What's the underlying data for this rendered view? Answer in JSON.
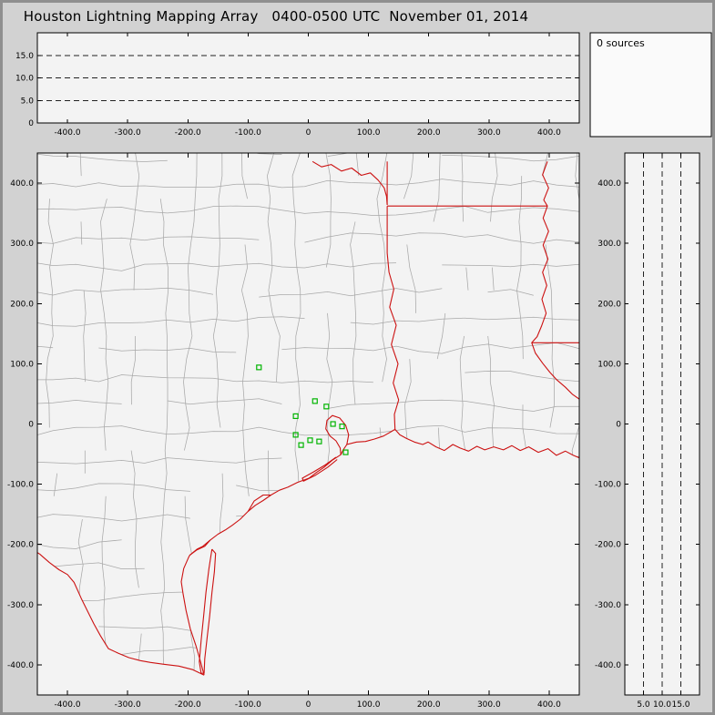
{
  "window": {
    "title": "Houston Lightning Mapping Array   0400-0500 UTC  November 01, 2014"
  },
  "sources_panel": {
    "label": "0 sources"
  },
  "colors": {
    "figure_background": "#d2d2d2",
    "panel_background": "#f3f3f3",
    "sources_panel_background": "#fafafa",
    "frame": "#000000",
    "county_lines": "#a8a8a8",
    "state_borders": "#cc1111",
    "station_marker": "#00b400",
    "dashed_gridlines": "#222222"
  },
  "chart_data": {
    "type": "scatter",
    "title": "Houston Lightning Mapping Array",
    "time_window": "0400-0500 UTC",
    "date": "November 01, 2014",
    "source_count": 0,
    "panels": {
      "top_altitude": {
        "xlim": [
          -450,
          450
        ],
        "ylim": [
          0,
          20
        ],
        "x_ticks": [
          -400,
          -300,
          -200,
          -100,
          0,
          100,
          200,
          300,
          400
        ],
        "x_tick_labels": [
          "-400.0",
          "-300.0",
          "-200.0",
          "-100.0",
          "0",
          "100.0",
          "200.0",
          "300.0",
          "400.0"
        ],
        "y_ticks": [
          0,
          5,
          10,
          15
        ],
        "y_tick_labels": [
          "0",
          "5.0",
          "10.0",
          "15.0"
        ],
        "dashed_gridlines_y": [
          5,
          10,
          15
        ],
        "points": []
      },
      "plan_view": {
        "xlim": [
          -450,
          450
        ],
        "ylim": [
          -450,
          450
        ],
        "x_ticks": [
          -400,
          -300,
          -200,
          -100,
          0,
          100,
          200,
          300,
          400
        ],
        "x_tick_labels": [
          "-400.0",
          "-300.0",
          "-200.0",
          "-100.0",
          "0",
          "100.0",
          "200.0",
          "300.0",
          "400.0"
        ],
        "y_ticks": [
          400,
          300,
          200,
          100,
          0,
          -100,
          -200,
          -300,
          -400
        ],
        "y_tick_labels": [
          "400.0",
          "300.0",
          "200.0",
          "100.0",
          "0",
          "-100.0",
          "-200.0",
          "-300.0",
          "-400.0"
        ],
        "stations_km": [
          [
            -82,
            94
          ],
          [
            -21,
            13
          ],
          [
            11,
            38
          ],
          [
            30,
            29
          ],
          [
            -21,
            -18
          ],
          [
            3,
            -27
          ],
          [
            -12,
            -35
          ],
          [
            18,
            -29
          ],
          [
            41,
            0
          ],
          [
            56,
            -4
          ],
          [
            62,
            -47
          ]
        ],
        "points": []
      },
      "right_altitude": {
        "xlim": [
          0,
          20
        ],
        "ylim": [
          -450,
          450
        ],
        "x_ticks": [
          5,
          10,
          15
        ],
        "x_tick_labels": [
          "5.0",
          "10.0",
          "15.0"
        ],
        "y_ticks": [
          400,
          300,
          200,
          100,
          0,
          -100,
          -200,
          -300,
          -400
        ],
        "y_tick_labels": [
          "400.0",
          "300.0",
          "200.0",
          "100.0",
          "0",
          "-100.0",
          "-200.0",
          "-300.0",
          "-400.0"
        ],
        "dashed_gridlines_x": [
          5,
          10,
          15
        ],
        "points": []
      }
    },
    "map_layers": {
      "county_grid": {
        "spacing_km": 46,
        "seed": 20141101
      },
      "red_paths": {
        "coastline": [
          [
            -173,
            -417
          ],
          [
            -179,
            -395
          ],
          [
            -186,
            -370
          ],
          [
            -196,
            -340
          ],
          [
            -203,
            -310
          ],
          [
            -208,
            -282
          ],
          [
            -211,
            -262
          ],
          [
            -207,
            -240
          ],
          [
            -199,
            -222
          ],
          [
            -197,
            -218
          ],
          [
            -185,
            -208
          ],
          [
            -175,
            -203
          ],
          [
            -163,
            -193
          ],
          [
            -150,
            -183
          ],
          [
            -138,
            -176
          ],
          [
            -126,
            -168
          ],
          [
            -113,
            -158
          ],
          [
            -100,
            -145
          ],
          [
            -88,
            -135
          ],
          [
            -75,
            -127
          ],
          [
            -62,
            -118
          ],
          [
            -48,
            -110
          ],
          [
            -34,
            -105
          ],
          [
            -18,
            -97
          ],
          [
            1,
            -90
          ],
          [
            14,
            -80
          ],
          [
            26,
            -72
          ],
          [
            40,
            -60
          ],
          [
            54,
            -51
          ],
          [
            58,
            -43
          ],
          [
            64,
            -34
          ],
          [
            80,
            -30
          ],
          [
            95,
            -29
          ],
          [
            110,
            -25
          ],
          [
            125,
            -20
          ],
          [
            137,
            -13
          ],
          [
            144,
            -9
          ],
          [
            152,
            -18
          ],
          [
            163,
            -24
          ],
          [
            176,
            -30
          ],
          [
            190,
            -34
          ],
          [
            199,
            -30
          ],
          [
            212,
            -38
          ],
          [
            226,
            -44
          ],
          [
            240,
            -34
          ],
          [
            252,
            -40
          ],
          [
            266,
            -45
          ],
          [
            280,
            -37
          ],
          [
            293,
            -43
          ],
          [
            308,
            -38
          ],
          [
            324,
            -43
          ],
          [
            338,
            -36
          ],
          [
            352,
            -44
          ],
          [
            366,
            -38
          ],
          [
            382,
            -47
          ],
          [
            398,
            -41
          ],
          [
            412,
            -52
          ],
          [
            427,
            -45
          ],
          [
            440,
            -52
          ],
          [
            452,
            -57
          ]
        ],
        "rio_grande": [
          [
            -173,
            -417
          ],
          [
            -192,
            -408
          ],
          [
            -215,
            -402
          ],
          [
            -240,
            -399
          ],
          [
            -262,
            -396
          ],
          [
            -279,
            -393
          ],
          [
            -298,
            -388
          ],
          [
            -315,
            -381
          ],
          [
            -332,
            -373
          ],
          [
            -345,
            -352
          ],
          [
            -356,
            -332
          ],
          [
            -366,
            -312
          ],
          [
            -377,
            -290
          ],
          [
            -389,
            -263
          ],
          [
            -400,
            -250
          ],
          [
            -414,
            -242
          ],
          [
            -430,
            -230
          ],
          [
            -446,
            -216
          ],
          [
            -462,
            -206
          ]
        ],
        "red_river": [
          [
            7,
            436
          ],
          [
            22,
            427
          ],
          [
            38,
            431
          ],
          [
            55,
            420
          ],
          [
            72,
            425
          ],
          [
            88,
            413
          ],
          [
            103,
            417
          ],
          [
            116,
            405
          ],
          [
            126,
            392
          ],
          [
            130,
            378
          ],
          [
            131,
            364
          ]
        ],
        "tx_ar_border": [
          [
            131,
            436
          ],
          [
            131,
            364
          ]
        ],
        "ar_la_border": [
          [
            131,
            362
          ],
          [
            397,
            362
          ]
        ],
        "tx_la_border": [
          [
            131,
            362
          ],
          [
            131,
            284
          ],
          [
            134,
            252
          ],
          [
            142,
            224
          ],
          [
            135,
            194
          ],
          [
            146,
            164
          ],
          [
            138,
            132
          ],
          [
            149,
            100
          ],
          [
            141,
            68
          ],
          [
            150,
            40
          ],
          [
            143,
            16
          ],
          [
            144,
            -9
          ]
        ],
        "mississippi_river": [
          [
            397,
            436
          ],
          [
            389,
            414
          ],
          [
            399,
            392
          ],
          [
            391,
            372
          ],
          [
            397,
            362
          ],
          [
            390,
            342
          ],
          [
            399,
            320
          ],
          [
            390,
            297
          ],
          [
            398,
            274
          ],
          [
            389,
            252
          ],
          [
            396,
            230
          ],
          [
            388,
            207
          ],
          [
            395,
            184
          ],
          [
            387,
            162
          ],
          [
            380,
            145
          ],
          [
            371,
            135
          ],
          [
            377,
            118
          ],
          [
            389,
            101
          ],
          [
            401,
            86
          ],
          [
            413,
            73
          ],
          [
            427,
            61
          ],
          [
            439,
            49
          ],
          [
            452,
            40
          ]
        ],
        "la_ms_border": [
          [
            371,
            135
          ],
          [
            452,
            135
          ]
        ],
        "galveston_bay": [
          [
            64,
            -34
          ],
          [
            67,
            -18
          ],
          [
            62,
            -2
          ],
          [
            52,
            10
          ],
          [
            40,
            14
          ],
          [
            31,
            6
          ],
          [
            29,
            -8
          ],
          [
            36,
            -20
          ],
          [
            46,
            -28
          ],
          [
            53,
            -40
          ],
          [
            54,
            -51
          ]
        ],
        "matagorda_bay": [
          [
            -100,
            -145
          ],
          [
            -90,
            -128
          ],
          [
            -75,
            -118
          ],
          [
            -62,
            -118
          ]
        ],
        "corpus_christi_bay": [
          [
            -163,
            -193
          ],
          [
            -172,
            -203
          ],
          [
            -185,
            -209
          ],
          [
            -197,
            -218
          ]
        ],
        "padre_island": [
          [
            -160,
            -208
          ],
          [
            -165,
            -240
          ],
          [
            -170,
            -280
          ],
          [
            -174,
            -320
          ],
          [
            -178,
            -360
          ],
          [
            -181,
            -395
          ],
          [
            -178,
            -414
          ],
          [
            -173,
            -414
          ],
          [
            -172,
            -390
          ],
          [
            -168,
            -355
          ],
          [
            -164,
            -320
          ],
          [
            -160,
            -280
          ],
          [
            -156,
            -245
          ],
          [
            -154,
            -215
          ],
          [
            -160,
            -208
          ]
        ],
        "galveston_island": [
          [
            46,
            -55
          ],
          [
            28,
            -68
          ],
          [
            8,
            -80
          ],
          [
            -10,
            -90
          ],
          [
            -8,
            -95
          ],
          [
            12,
            -85
          ],
          [
            32,
            -72
          ],
          [
            48,
            -59
          ]
        ]
      }
    }
  }
}
